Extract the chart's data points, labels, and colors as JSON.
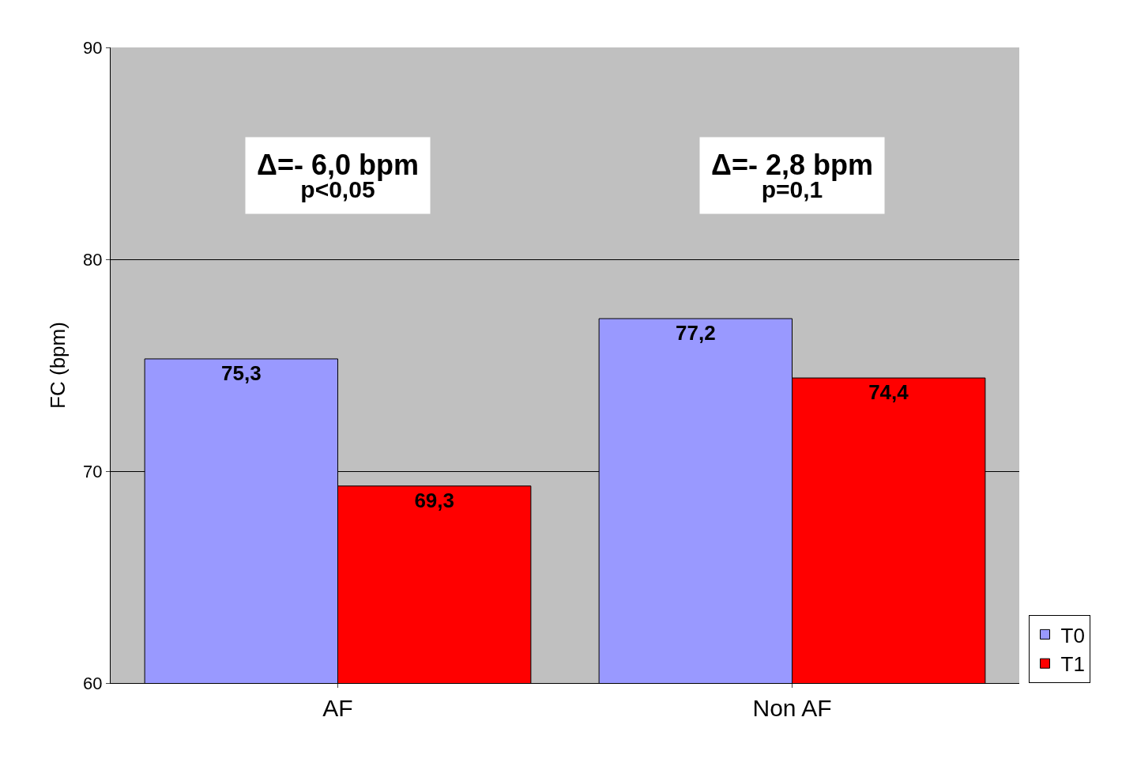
{
  "chart_data": {
    "type": "bar",
    "ylabel": "FC (bpm)",
    "categories": [
      "AF",
      "Non AF"
    ],
    "series": [
      {
        "name": "T0",
        "color": "#9999ff",
        "values": [
          75.3,
          77.2
        ],
        "value_labels": [
          "75,3",
          "77,2"
        ]
      },
      {
        "name": "T1",
        "color": "#ff0000",
        "values": [
          69.3,
          74.4
        ],
        "value_labels": [
          "69,3",
          "74,4"
        ]
      }
    ],
    "ylim": [
      60,
      90
    ],
    "yticks": [
      60,
      70,
      80,
      90
    ],
    "grid": "y",
    "legend": "bottom right",
    "annotations": [
      "Δ=- 6,0 bpm\np<0,05",
      "Δ=- 2,8 bpm\np=0,1"
    ]
  }
}
